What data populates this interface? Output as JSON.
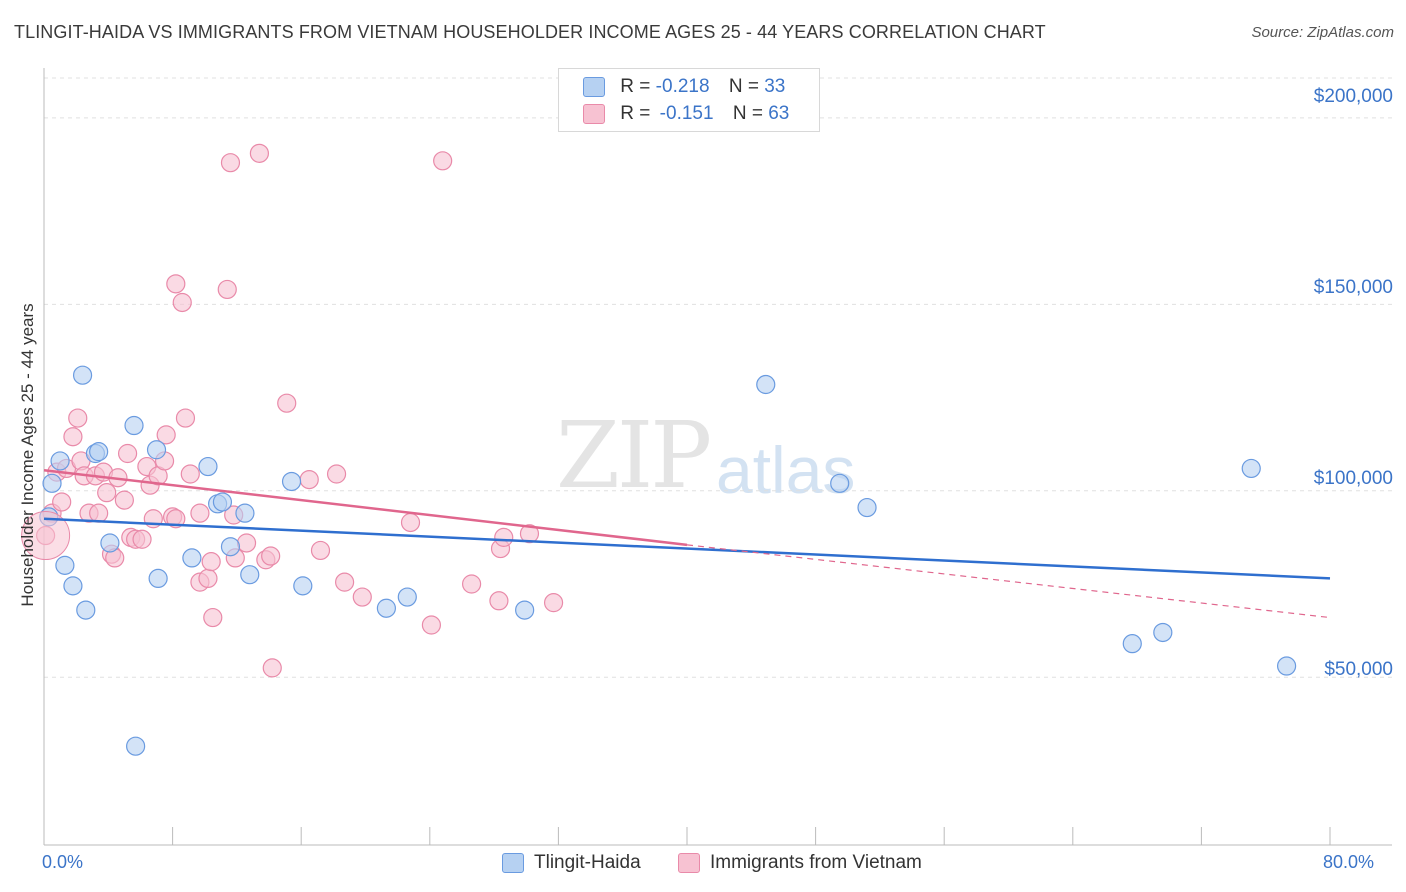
{
  "title": "TLINGIT-HAIDA VS IMMIGRANTS FROM VIETNAM HOUSEHOLDER INCOME AGES 25 - 44 YEARS CORRELATION CHART",
  "source": "Source: ZipAtlas.com",
  "watermark": {
    "zip": "ZIP",
    "atlas": "atlas"
  },
  "legend": {
    "r_label": "R =",
    "n_label": "N =",
    "series1": {
      "r": "-0.218",
      "n": "33"
    },
    "series2": {
      "r": "-0.151",
      "n": "63"
    }
  },
  "colors": {
    "blue_fill": "#b6d1f2",
    "blue_stroke": "#6a9be0",
    "blue_line": "#2f6fcf",
    "pink_fill": "#f7c2d2",
    "pink_stroke": "#e98aa9",
    "pink_line": "#e0668d",
    "grid": "#e0e0e0",
    "tick_text": "#3b74c8"
  },
  "chart_data": {
    "type": "scatter",
    "title": "TLINGIT-HAIDA VS IMMIGRANTS FROM VIETNAM HOUSEHOLDER INCOME AGES 25 - 44 YEARS CORRELATION CHART",
    "xlabel": "",
    "ylabel": "Householder Income Ages 25 - 44 years",
    "xlim": [
      0,
      80
    ],
    "ylim": [
      5000,
      215000
    ],
    "x_tick_labels": [
      "0.0%",
      "80.0%"
    ],
    "y_ticks": [
      50000,
      100000,
      150000,
      200000
    ],
    "y_tick_labels": [
      "$50,000",
      "$100,000",
      "$150,000",
      "$200,000"
    ],
    "legend_position": "top-center",
    "series": [
      {
        "name": "Tlingit-Haida",
        "r": -0.218,
        "n": 33,
        "trend": {
          "x": [
            0,
            80
          ],
          "y": [
            92500,
            76500
          ]
        },
        "points": [
          [
            0.3,
            93000
          ],
          [
            0.5,
            102000
          ],
          [
            1.0,
            108000
          ],
          [
            1.3,
            80000
          ],
          [
            1.8,
            74500
          ],
          [
            2.4,
            131000
          ],
          [
            2.6,
            68000
          ],
          [
            3.2,
            110000
          ],
          [
            3.4,
            110500
          ],
          [
            4.1,
            86000
          ],
          [
            5.7,
            31500
          ],
          [
            5.6,
            117500
          ],
          [
            7.0,
            111000
          ],
          [
            7.1,
            76500
          ],
          [
            9.2,
            82000
          ],
          [
            10.2,
            106500
          ],
          [
            10.8,
            96500
          ],
          [
            11.1,
            97000
          ],
          [
            11.6,
            85000
          ],
          [
            12.5,
            94000
          ],
          [
            12.8,
            77500
          ],
          [
            15.4,
            102500
          ],
          [
            16.1,
            74500
          ],
          [
            21.3,
            68500
          ],
          [
            22.6,
            71500
          ],
          [
            29.9,
            68000
          ],
          [
            44.9,
            128500
          ],
          [
            49.5,
            102000
          ],
          [
            51.2,
            95500
          ],
          [
            67.7,
            59000
          ],
          [
            69.6,
            62000
          ],
          [
            75.1,
            106000
          ],
          [
            77.3,
            53000
          ]
        ]
      },
      {
        "name": "Immigrants from Vietnam",
        "r": -0.151,
        "n": 63,
        "trend": {
          "x": [
            0,
            40
          ],
          "y": [
            105500,
            85500
          ]
        },
        "trend_dashed": {
          "x": [
            40,
            80
          ],
          "y": [
            85500,
            66000
          ]
        },
        "points": [
          [
            0.1,
            88000
          ],
          [
            0.5,
            94000
          ],
          [
            0.8,
            105000
          ],
          [
            1.1,
            97000
          ],
          [
            1.4,
            106000
          ],
          [
            1.8,
            114500
          ],
          [
            2.1,
            119500
          ],
          [
            2.3,
            108000
          ],
          [
            2.5,
            104000
          ],
          [
            2.8,
            94000
          ],
          [
            3.2,
            104000
          ],
          [
            3.4,
            94000
          ],
          [
            3.7,
            105000
          ],
          [
            3.9,
            99500
          ],
          [
            4.2,
            83000
          ],
          [
            4.4,
            82000
          ],
          [
            4.6,
            103500
          ],
          [
            5.0,
            97500
          ],
          [
            5.2,
            110000
          ],
          [
            5.4,
            87500
          ],
          [
            5.7,
            87000
          ],
          [
            6.1,
            87000
          ],
          [
            6.4,
            106500
          ],
          [
            6.6,
            101500
          ],
          [
            6.8,
            92500
          ],
          [
            7.1,
            104000
          ],
          [
            7.5,
            108000
          ],
          [
            7.6,
            115000
          ],
          [
            8.0,
            93000
          ],
          [
            8.2,
            92500
          ],
          [
            8.2,
            155500
          ],
          [
            8.6,
            150500
          ],
          [
            8.8,
            119500
          ],
          [
            9.1,
            104500
          ],
          [
            9.7,
            94000
          ],
          [
            9.7,
            75500
          ],
          [
            10.2,
            76500
          ],
          [
            10.5,
            66000
          ],
          [
            11.4,
            154000
          ],
          [
            11.6,
            188000
          ],
          [
            11.8,
            93500
          ],
          [
            11.9,
            82000
          ],
          [
            12.6,
            86000
          ],
          [
            13.4,
            190500
          ],
          [
            13.8,
            81500
          ],
          [
            14.1,
            82500
          ],
          [
            14.2,
            52500
          ],
          [
            15.1,
            123500
          ],
          [
            16.5,
            103000
          ],
          [
            17.2,
            84000
          ],
          [
            18.2,
            104500
          ],
          [
            18.7,
            75500
          ],
          [
            19.8,
            71500
          ],
          [
            22.8,
            91500
          ],
          [
            24.1,
            64000
          ],
          [
            24.8,
            188500
          ],
          [
            26.6,
            75000
          ],
          [
            28.3,
            70500
          ],
          [
            28.4,
            84500
          ],
          [
            28.6,
            87500
          ],
          [
            30.2,
            88500
          ],
          [
            31.7,
            70000
          ],
          [
            10.4,
            81000
          ]
        ]
      }
    ]
  }
}
